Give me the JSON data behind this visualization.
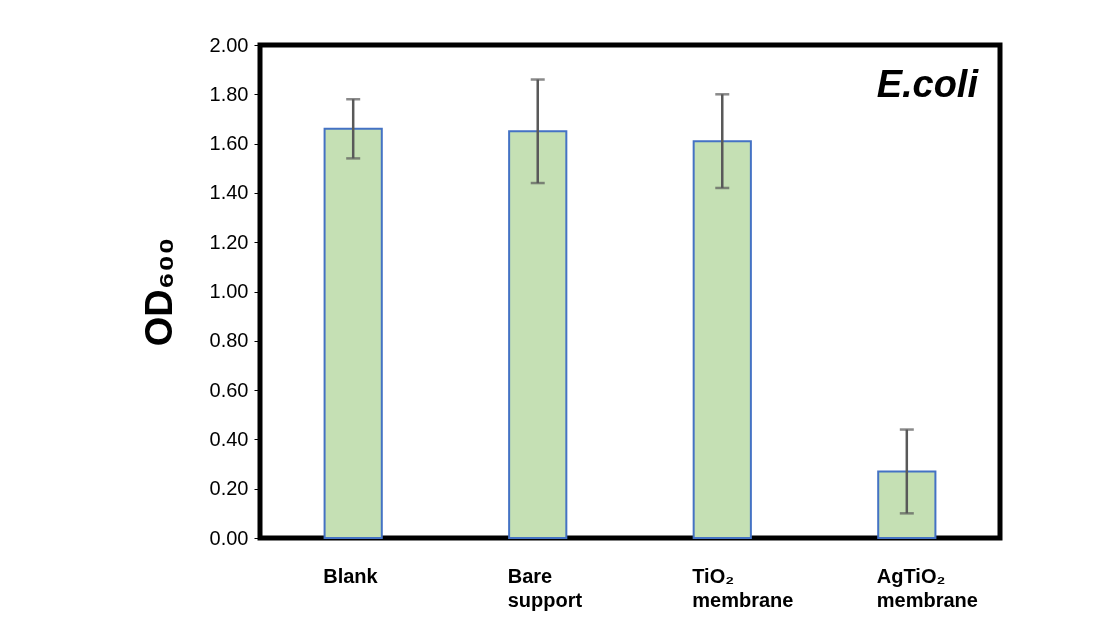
{
  "chart_data": {
    "type": "bar",
    "ylabel": "OD₆₀₀",
    "annotations": [
      "E.coli"
    ],
    "categories": [
      "Blank",
      "Bare support",
      "TiO₂ membrane",
      "AgTiO₂ membrane"
    ],
    "values": [
      1.66,
      1.65,
      1.61,
      0.27
    ],
    "errors": [
      0.12,
      0.21,
      0.19,
      0.17
    ],
    "color": "#c5e0b4",
    "ylim": [
      0,
      2
    ],
    "yticks": [
      {
        "value": 0,
        "label": "0.00"
      },
      {
        "value": 0.2,
        "label": "0.20"
      },
      {
        "value": 0.4,
        "label": "0.40"
      },
      {
        "value": 0.6,
        "label": "0.60"
      },
      {
        "value": 0.8,
        "label": "0.80"
      },
      {
        "value": 1,
        "label": "1.00"
      },
      {
        "value": 1.2,
        "label": "1.20"
      },
      {
        "value": 1.4,
        "label": "1.40"
      },
      {
        "value": 1.6,
        "label": "1.60"
      },
      {
        "value": 1.8,
        "label": "1.80"
      },
      {
        "value": 2,
        "label": "2.00"
      }
    ],
    "grid": false
  }
}
